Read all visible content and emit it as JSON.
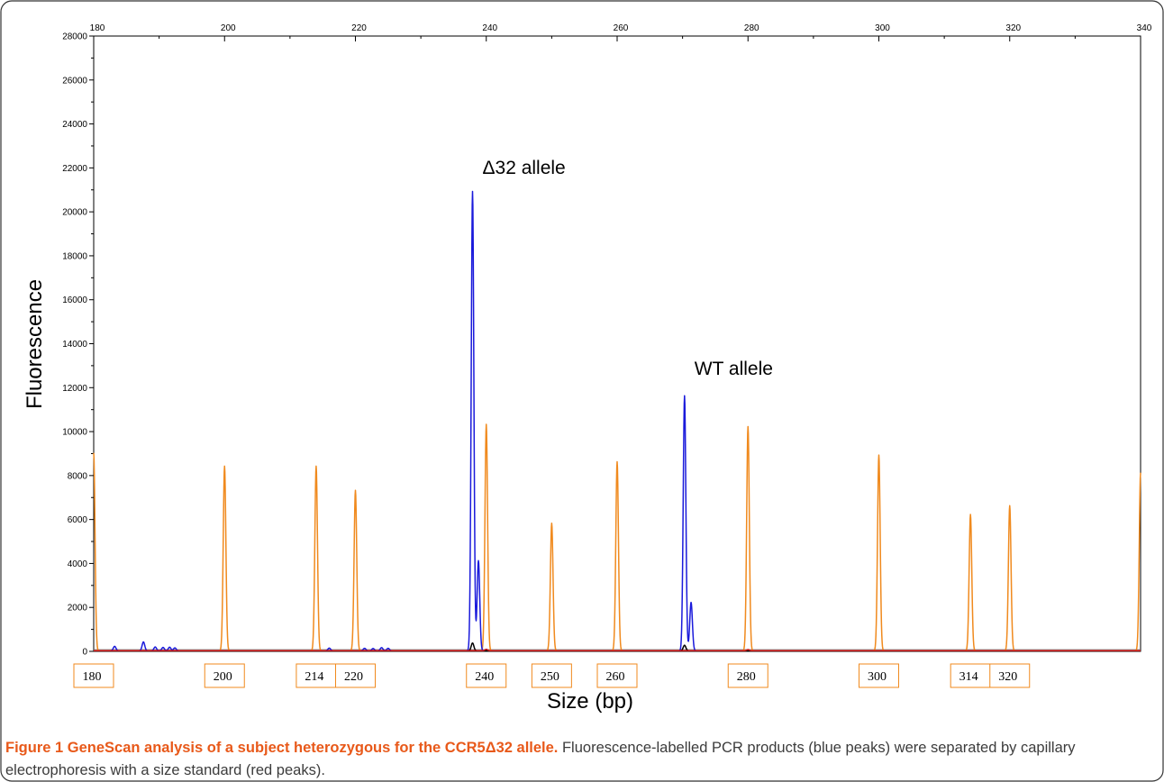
{
  "chart_data": {
    "type": "line",
    "xlabel": "Size (bp)",
    "ylabel": "Fluorescence",
    "xlim": [
      180,
      340
    ],
    "ylim": [
      0,
      28000
    ],
    "top_ticks": [
      180,
      200,
      220,
      240,
      260,
      280,
      300,
      320,
      340
    ],
    "y_ticks": [
      0,
      2000,
      4000,
      6000,
      8000,
      10000,
      12000,
      14000,
      16000,
      18000,
      20000,
      22000,
      24000,
      26000,
      28000
    ],
    "size_standard_labels": [
      "180",
      "200",
      "214",
      "220",
      "240",
      "250",
      "260",
      "280",
      "300",
      "314",
      "320"
    ],
    "annotations": [
      {
        "text": "Δ32 allele",
        "x": 237.9,
        "y": 21000
      },
      {
        "text": "WT allele",
        "x": 270.3,
        "y": 11600
      }
    ],
    "series": [
      {
        "color": "#f08a1e",
        "peaks": [
          {
            "x": 180.0,
            "y": 9000
          },
          {
            "x": 200.0,
            "y": 8400
          },
          {
            "x": 214.0,
            "y": 8400
          },
          {
            "x": 220.0,
            "y": 7300
          },
          {
            "x": 240.0,
            "y": 10300
          },
          {
            "x": 250.0,
            "y": 5800
          },
          {
            "x": 260.0,
            "y": 8600
          },
          {
            "x": 280.0,
            "y": 10200
          },
          {
            "x": 300.0,
            "y": 8900
          },
          {
            "x": 314.0,
            "y": 6200
          },
          {
            "x": 320.0,
            "y": 6600
          },
          {
            "x": 340.0,
            "y": 8100
          }
        ]
      },
      {
        "color": "#1a1adb",
        "peaks": [
          {
            "x": 237.9,
            "y": 20900
          },
          {
            "x": 238.8,
            "y": 4100
          },
          {
            "x": 270.3,
            "y": 11600
          },
          {
            "x": 271.3,
            "y": 2200
          },
          {
            "x": 183.2,
            "y": 200
          },
          {
            "x": 187.6,
            "y": 400
          },
          {
            "x": 189.4,
            "y": 170
          },
          {
            "x": 190.6,
            "y": 150
          },
          {
            "x": 191.6,
            "y": 160
          },
          {
            "x": 192.4,
            "y": 130
          },
          {
            "x": 216.0,
            "y": 120
          },
          {
            "x": 221.4,
            "y": 110
          },
          {
            "x": 222.7,
            "y": 100
          },
          {
            "x": 224.0,
            "y": 140
          },
          {
            "x": 225.0,
            "y": 110
          }
        ]
      },
      {
        "color": "#000000",
        "peaks": [
          {
            "x": 237.9,
            "y": 350
          },
          {
            "x": 270.3,
            "y": 250
          }
        ]
      },
      {
        "color": "#cc1010",
        "peaks": [
          {
            "x": 240.0,
            "y": 60
          },
          {
            "x": 280.0,
            "y": 50
          }
        ]
      }
    ]
  },
  "caption": {
    "bold": "Figure 1 GeneScan analysis of a subject heterozygous for the CCR5Δ32 allele.",
    "text": " Fluorescence-labelled PCR products (blue peaks) were separated by capillary electrophoresis with a size standard (red peaks)."
  }
}
